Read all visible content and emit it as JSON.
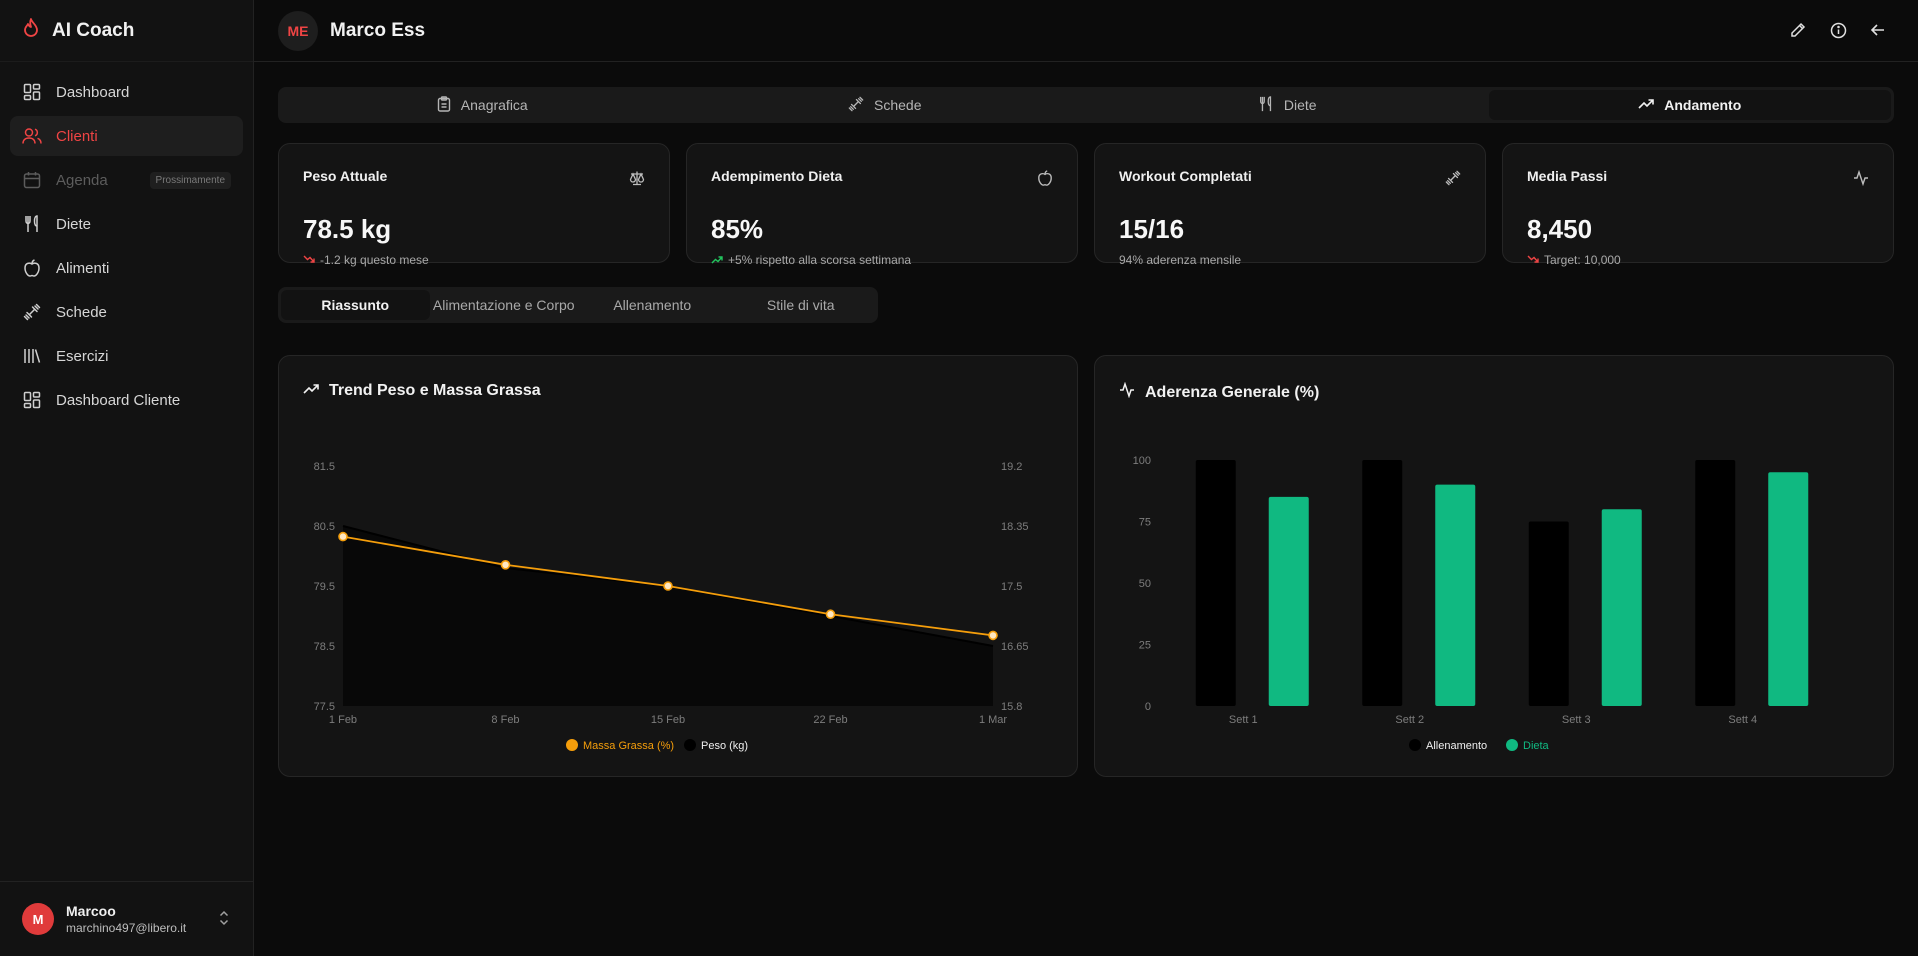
{
  "app": {
    "title": "AI Coach",
    "logo_icon": "flame-icon",
    "accent": "#ef4444"
  },
  "sidebar": {
    "items": [
      {
        "label": "Dashboard",
        "icon": "dashboard-icon"
      },
      {
        "label": "Clienti",
        "icon": "users-icon",
        "active": true
      },
      {
        "label": "Agenda",
        "icon": "calendar-icon",
        "badge": "Prossimamente",
        "disabled": true
      },
      {
        "label": "Diete",
        "icon": "fork-knife-icon"
      },
      {
        "label": "Alimenti",
        "icon": "apple-icon"
      },
      {
        "label": "Schede",
        "icon": "dumbbell-icon"
      },
      {
        "label": "Esercizi",
        "icon": "library-icon"
      },
      {
        "label": "Dashboard Cliente",
        "icon": "dashboard-icon"
      }
    ],
    "user": {
      "initial": "M",
      "name": "Marcoo",
      "email": "marchino497@libero.it"
    }
  },
  "header": {
    "initials": "ME",
    "client_name": "Marco Ess"
  },
  "tabs": [
    {
      "label": "Anagrafica",
      "icon": "clipboard-icon"
    },
    {
      "label": "Schede",
      "icon": "dumbbell-icon"
    },
    {
      "label": "Diete",
      "icon": "fork-knife-icon"
    },
    {
      "label": "Andamento",
      "icon": "trending-up-icon",
      "active": true
    }
  ],
  "stats": [
    {
      "title": "Peso Attuale",
      "icon": "scale-icon",
      "value": "78.5 kg",
      "sub": "-1.2 kg questo mese",
      "trend": "down"
    },
    {
      "title": "Adempimento Dieta",
      "icon": "apple-icon",
      "value": "85%",
      "sub": "+5% rispetto alla scorsa settimana",
      "trend": "up"
    },
    {
      "title": "Workout Completati",
      "icon": "dumbbell-icon",
      "value": "15/16",
      "sub": "94% aderenza mensile",
      "trend": "none"
    },
    {
      "title": "Media Passi",
      "icon": "activity-icon",
      "value": "8,450",
      "sub": "Target: 10,000",
      "trend": "down"
    }
  ],
  "subtabs": [
    {
      "label": "Riassunto",
      "active": true
    },
    {
      "label": "Alimentazione e Corpo"
    },
    {
      "label": "Allenamento"
    },
    {
      "label": "Stile di vita"
    }
  ],
  "chart_data": [
    {
      "type": "line",
      "title": "Trend Peso e Massa Grassa",
      "x": [
        "1 Feb",
        "8 Feb",
        "15 Feb",
        "22 Feb",
        "1 Mar"
      ],
      "y_left_ticks": [
        "77.5",
        "78.5",
        "79.5",
        "80.5",
        "81.5"
      ],
      "y_right_ticks": [
        "15.8",
        "16.65",
        "17.5",
        "18.35",
        "19.2"
      ],
      "ylim_left": [
        77.5,
        81.5
      ],
      "ylim_right": [
        15.8,
        19.2
      ],
      "series": [
        {
          "name": "Massa Grassa (%)",
          "axis": "right",
          "color": "#f59e0b",
          "values": [
            18.2,
            17.8,
            17.5,
            17.1,
            16.8
          ]
        },
        {
          "name": "Peso (kg)",
          "axis": "left",
          "color": "#000000",
          "values": [
            80.5,
            79.8,
            79.5,
            79.0,
            78.5
          ]
        }
      ]
    },
    {
      "type": "bar",
      "title": "Aderenza Generale (%)",
      "categories": [
        "Sett 1",
        "Sett 2",
        "Sett 3",
        "Sett 4"
      ],
      "y_ticks": [
        "0",
        "25",
        "50",
        "75",
        "100"
      ],
      "ylim": [
        0,
        100
      ],
      "series": [
        {
          "name": "Allenamento",
          "color": "#000000",
          "values": [
            100,
            100,
            75,
            100
          ]
        },
        {
          "name": "Dieta",
          "color": "#10b981",
          "values": [
            85,
            90,
            80,
            95
          ]
        }
      ]
    }
  ]
}
